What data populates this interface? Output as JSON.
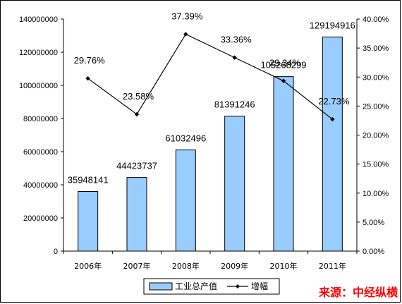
{
  "chart_data": {
    "type": "bar",
    "categories": [
      "2006年",
      "2007年",
      "2008年",
      "2009年",
      "2010年",
      "2011年"
    ],
    "series": [
      {
        "name": "工业总产值",
        "type": "bar",
        "axis": "left",
        "values": [
          35948141,
          44423737,
          61032496,
          81391246,
          105268299,
          129194916
        ],
        "labels": [
          "35948141",
          "44423737",
          "61032496",
          "81391246",
          "105268299",
          "129194916"
        ],
        "color": "#99ccff"
      },
      {
        "name": "增幅",
        "type": "line",
        "axis": "right",
        "values": [
          29.76,
          23.58,
          37.39,
          33.36,
          29.34,
          22.73
        ],
        "labels": [
          "29.76%",
          "23.58%",
          "37.39%",
          "33.36%",
          "29.34%",
          "22.73%"
        ],
        "color": "#000000"
      }
    ],
    "y_left": {
      "range": [
        0,
        140000000
      ],
      "ticks": [
        "0",
        "20000000",
        "40000000",
        "60000000",
        "80000000",
        "100000000",
        "120000000",
        "140000000"
      ]
    },
    "y_right": {
      "range": [
        0,
        40
      ],
      "ticks": [
        "0.00%",
        "5.00%",
        "10.00%",
        "15.00%",
        "20.00%",
        "25.00%",
        "30.00%",
        "35.00%",
        "40.00%"
      ]
    },
    "grid": false,
    "legend_position": "bottom"
  },
  "source_text": "来源：中经纵横"
}
